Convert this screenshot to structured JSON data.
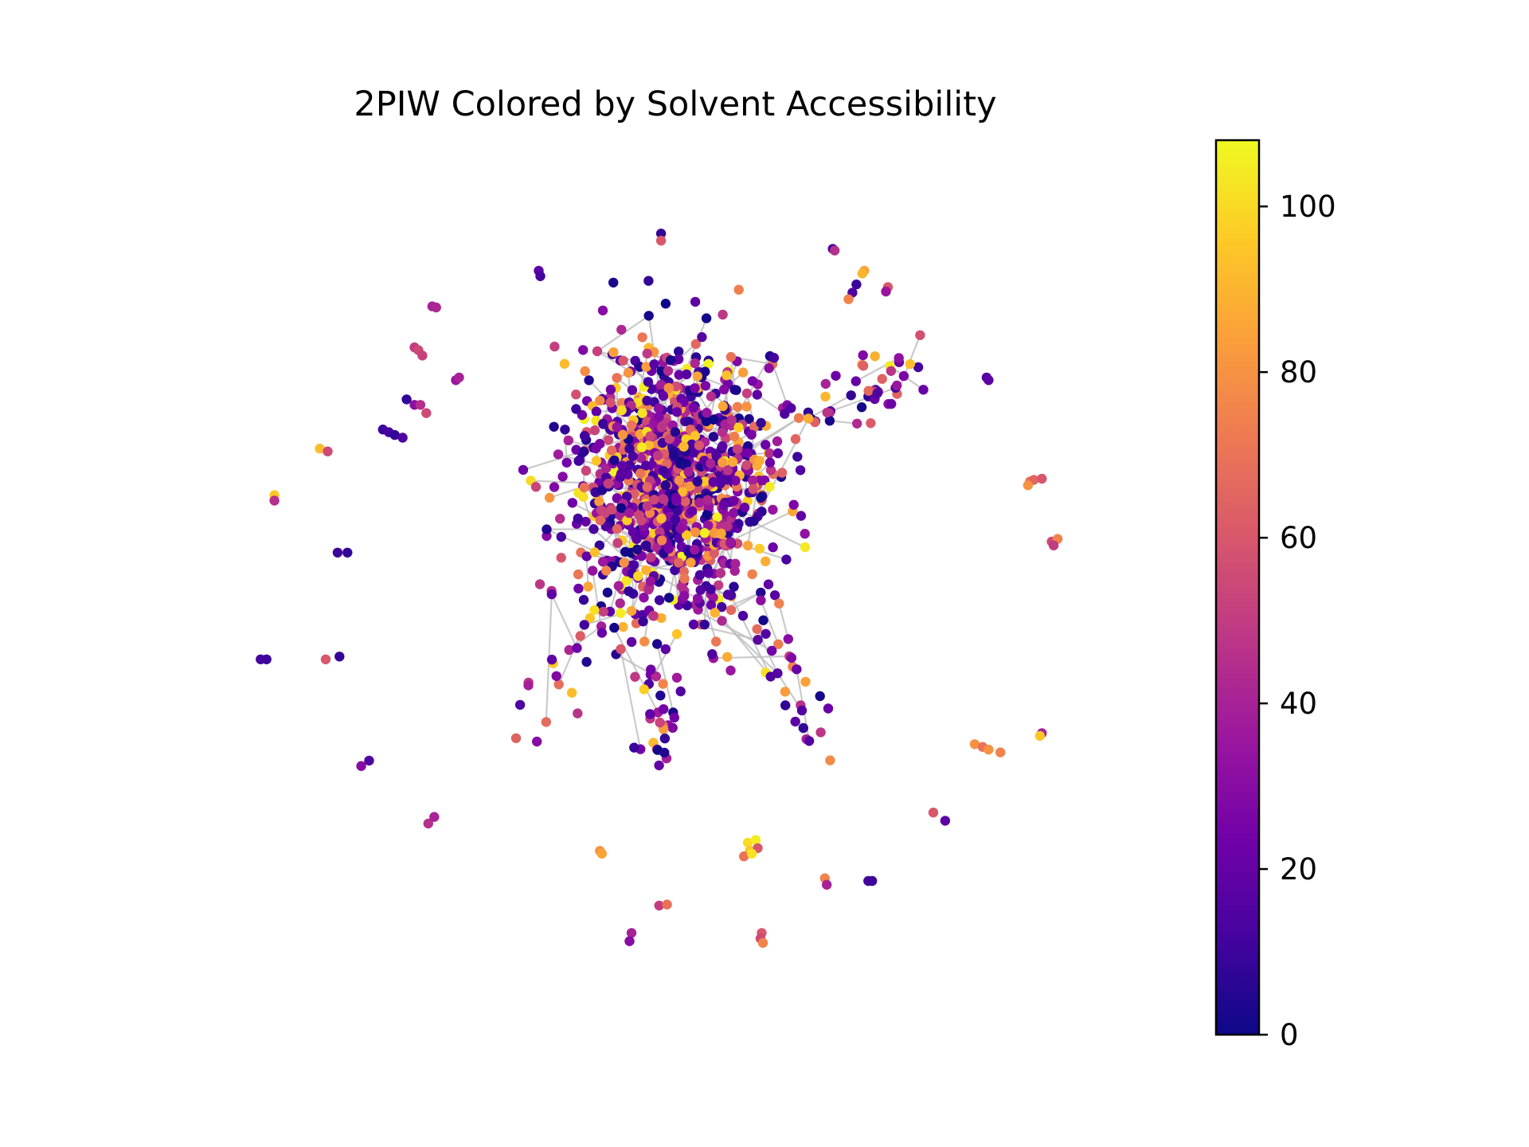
{
  "chart_data": {
    "type": "scatter",
    "title": "2PIW Colored by Solvent Accessibility",
    "xlabel": "",
    "ylabel": "",
    "axes_visible": false,
    "grid": false,
    "colormap": "plasma",
    "edge_color": "#bdbdbd",
    "colorbar": {
      "placement": "right",
      "range": [
        0,
        108
      ],
      "ticks": [
        0,
        20,
        40,
        60,
        80,
        100
      ],
      "tick_labels": [
        "0",
        "20",
        "40",
        "60",
        "80",
        "100"
      ],
      "colors": [
        "#0d0887",
        "#46039f",
        "#7201a8",
        "#9c179e",
        "#bd3786",
        "#d8576b",
        "#ed7953",
        "#fb9f3a",
        "#fdca26",
        "#f0f921"
      ]
    },
    "isolated_nodes": [
      {
        "x": -2.3,
        "y": 4.28,
        "value": 8
      },
      {
        "x": -2.3,
        "y": 4.15,
        "value": 60
      },
      {
        "x": 2.05,
        "y": 4.0,
        "value": 12
      },
      {
        "x": 2.1,
        "y": 3.97,
        "value": 45
      },
      {
        "x": -5.4,
        "y": 3.6,
        "value": 18
      },
      {
        "x": -5.36,
        "y": 3.5,
        "value": 12
      },
      {
        "x": 2.85,
        "y": 3.6,
        "value": 85
      },
      {
        "x": 2.8,
        "y": 3.55,
        "value": 90
      },
      {
        "x": 2.65,
        "y": 3.35,
        "value": 10
      },
      {
        "x": 2.55,
        "y": 3.2,
        "value": 15
      },
      {
        "x": 2.45,
        "y": 3.08,
        "value": 75
      },
      {
        "x": 3.45,
        "y": 3.3,
        "value": 60
      },
      {
        "x": 3.4,
        "y": 3.22,
        "value": 35
      },
      {
        "x": -8.1,
        "y": 2.95,
        "value": 40
      },
      {
        "x": -8.0,
        "y": 2.93,
        "value": 42
      },
      {
        "x": -8.55,
        "y": 2.2,
        "value": 50
      },
      {
        "x": -8.45,
        "y": 2.15,
        "value": 55
      },
      {
        "x": -8.35,
        "y": 2.05,
        "value": 52
      },
      {
        "x": -7.5,
        "y": 1.6,
        "value": 35
      },
      {
        "x": -7.42,
        "y": 1.65,
        "value": 40
      },
      {
        "x": -8.75,
        "y": 1.25,
        "value": 8
      },
      {
        "x": -8.55,
        "y": 1.15,
        "value": 32
      },
      {
        "x": -8.4,
        "y": 1.15,
        "value": 45
      },
      {
        "x": -8.25,
        "y": 1.0,
        "value": 55
      },
      {
        "x": -9.35,
        "y": 0.7,
        "value": 10
      },
      {
        "x": -9.2,
        "y": 0.65,
        "value": 12
      },
      {
        "x": -9.05,
        "y": 0.6,
        "value": 8
      },
      {
        "x": -8.85,
        "y": 0.55,
        "value": 15
      },
      {
        "x": -10.95,
        "y": 0.35,
        "value": 92
      },
      {
        "x": -10.75,
        "y": 0.3,
        "value": 55
      },
      {
        "x": 5.95,
        "y": 1.65,
        "value": 15
      },
      {
        "x": 6.0,
        "y": 1.6,
        "value": 18
      },
      {
        "x": -12.1,
        "y": -0.5,
        "value": 95
      },
      {
        "x": -12.1,
        "y": -0.6,
        "value": 45
      },
      {
        "x": -10.5,
        "y": -1.55,
        "value": 10
      },
      {
        "x": -10.25,
        "y": -1.55,
        "value": 8
      },
      {
        "x": 7.05,
        "y": -0.25,
        "value": 70
      },
      {
        "x": 7.15,
        "y": -0.22,
        "value": 65
      },
      {
        "x": 7.0,
        "y": -0.32,
        "value": 80
      },
      {
        "x": 7.35,
        "y": -0.2,
        "value": 60
      },
      {
        "x": 7.6,
        "y": -1.35,
        "value": 55
      },
      {
        "x": 7.75,
        "y": -1.3,
        "value": 75
      },
      {
        "x": 7.65,
        "y": -1.42,
        "value": 50
      },
      {
        "x": -12.45,
        "y": -3.5,
        "value": 12
      },
      {
        "x": -12.3,
        "y": -3.5,
        "value": 10
      },
      {
        "x": -10.8,
        "y": -3.5,
        "value": 60
      },
      {
        "x": -10.45,
        "y": -3.45,
        "value": 8
      },
      {
        "x": 5.65,
        "y": -5.05,
        "value": 80
      },
      {
        "x": 5.85,
        "y": -5.1,
        "value": 70
      },
      {
        "x": 6.0,
        "y": -5.15,
        "value": 80
      },
      {
        "x": 6.3,
        "y": -5.2,
        "value": 75
      },
      {
        "x": 7.35,
        "y": -4.85,
        "value": 40
      },
      {
        "x": 7.3,
        "y": -4.9,
        "value": 95
      },
      {
        "x": -9.9,
        "y": -5.45,
        "value": 30
      },
      {
        "x": -9.7,
        "y": -5.35,
        "value": 15
      },
      {
        "x": 4.6,
        "y": -6.3,
        "value": 60
      },
      {
        "x": 4.9,
        "y": -6.45,
        "value": 18
      },
      {
        "x": -8.2,
        "y": -6.5,
        "value": 45
      },
      {
        "x": -8.05,
        "y": -6.38,
        "value": 40
      },
      {
        "x": -3.85,
        "y": -7.0,
        "value": 80
      },
      {
        "x": -3.8,
        "y": -7.05,
        "value": 85
      },
      {
        "x": -0.1,
        "y": -6.85,
        "value": 100
      },
      {
        "x": 0.1,
        "y": -6.8,
        "value": 105
      },
      {
        "x": -0.05,
        "y": -7.0,
        "value": 95
      },
      {
        "x": 0.15,
        "y": -6.95,
        "value": 60
      },
      {
        "x": -0.2,
        "y": -7.1,
        "value": 70
      },
      {
        "x": 0.0,
        "y": -7.05,
        "value": 102
      },
      {
        "x": 1.85,
        "y": -7.5,
        "value": 75
      },
      {
        "x": 1.9,
        "y": -7.62,
        "value": 40
      },
      {
        "x": 2.95,
        "y": -7.55,
        "value": 12
      },
      {
        "x": 3.05,
        "y": -7.55,
        "value": 10
      },
      {
        "x": -2.35,
        "y": -8.0,
        "value": 50
      },
      {
        "x": -2.15,
        "y": -7.98,
        "value": 70
      },
      {
        "x": -3.05,
        "y": -8.5,
        "value": 40
      },
      {
        "x": -3.1,
        "y": -8.65,
        "value": 30
      },
      {
        "x": 0.25,
        "y": -8.5,
        "value": 60
      },
      {
        "x": 0.22,
        "y": -8.6,
        "value": 55
      },
      {
        "x": 0.28,
        "y": -8.68,
        "value": 75
      }
    ],
    "cluster": {
      "center": {
        "x": -2.0,
        "y": -0.2
      },
      "x_spread": 2.0,
      "y_spread": 2.0,
      "node_count": 1100,
      "value_mix": [
        {
          "weight": 0.4,
          "range": [
            0,
            25
          ]
        },
        {
          "weight": 0.3,
          "range": [
            25,
            55
          ]
        },
        {
          "weight": 0.22,
          "range": [
            55,
            90
          ]
        },
        {
          "weight": 0.08,
          "range": [
            90,
            108
          ]
        }
      ]
    },
    "arms": [
      {
        "from": {
          "x": 1.2,
          "y": 0.8
        },
        "to": {
          "x": 4.2,
          "y": 1.9
        },
        "nodes": 45
      },
      {
        "from": {
          "x": -3.5,
          "y": -2.2
        },
        "to": {
          "x": -5.8,
          "y": -4.9
        },
        "nodes": 25
      },
      {
        "from": {
          "x": 0.3,
          "y": -2.3
        },
        "to": {
          "x": 1.6,
          "y": -5.0
        },
        "nodes": 30
      },
      {
        "from": {
          "x": -2.2,
          "y": -3.0
        },
        "to": {
          "x": -2.4,
          "y": -5.4
        },
        "nodes": 30
      }
    ],
    "plot_range": {
      "x": [
        -13,
        9
      ],
      "y": [
        -9.5,
        5.2
      ]
    }
  }
}
